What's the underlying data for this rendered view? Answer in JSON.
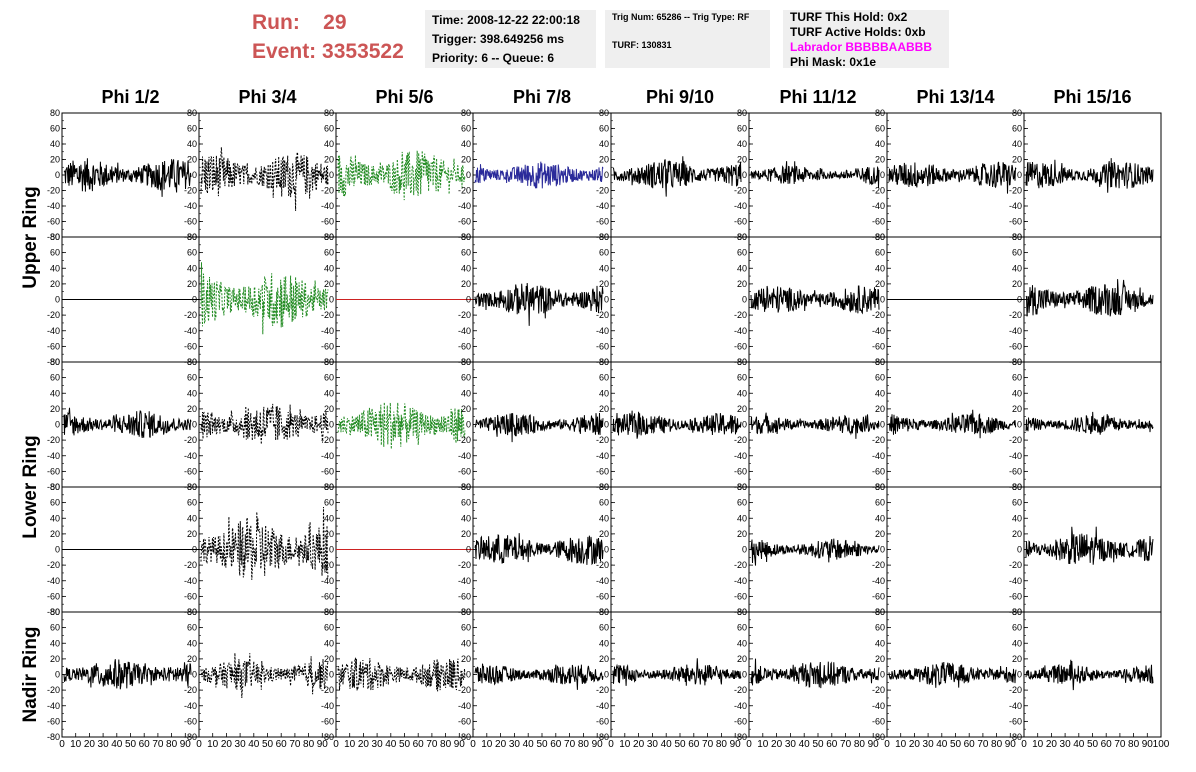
{
  "header": {
    "run_label": "Run:",
    "run_value": "29",
    "event_label": "Event:",
    "event_value": "3353522",
    "time": "Time: 2008-12-22 22:00:18",
    "trigger": "Trigger: 398.649256 ms",
    "priority": "Priority: 6 -- Queue: 6",
    "trig_num": "Trig Num: 65286 -- Trig Type: RF",
    "turf": "TURF: 130831",
    "turf_this_hold": "TURF This Hold: 0x2",
    "turf_active_holds": "TURF Active Holds: 0xb",
    "labrador": "Labrador BBBBBAABBB",
    "phi_mask": "Phi Mask: 0x1e"
  },
  "colors": {
    "run_text": "#cc5555",
    "labrador_text": "#ff00ff",
    "panel_bg": "#efefef",
    "trace_black": "#000000",
    "trace_green": "#228b22",
    "trace_blue": "#2b2b9a",
    "trace_red": "#cc2222"
  },
  "columns": [
    "Phi 1/2",
    "Phi 3/4",
    "Phi 5/6",
    "Phi 7/8",
    "Phi 9/10",
    "Phi 11/12",
    "Phi 13/14",
    "Phi 15/16"
  ],
  "row_groups": [
    "Upper Ring",
    "Lower Ring",
    "Nadir Ring"
  ],
  "chart_data": {
    "type": "line",
    "x_ticks": [
      "0",
      "10",
      "20",
      "30",
      "40",
      "50",
      "60",
      "70",
      "80",
      "90",
      "100"
    ],
    "y_ticks": [
      "80",
      "60",
      "40",
      "20",
      "0",
      "-20",
      "-40",
      "-60",
      "-80"
    ],
    "xlim": [
      0,
      100
    ],
    "ylim": [
      -80,
      80
    ],
    "grid": false,
    "panels": [
      [
        {
          "style": "black",
          "amp": 22
        },
        {
          "style": "black-dashed",
          "amp": 30
        },
        {
          "style": "green-dashed",
          "amp": 32
        },
        {
          "style": "blue",
          "amp": 18
        },
        {
          "style": "black",
          "amp": 20
        },
        {
          "style": "black",
          "amp": 12
        },
        {
          "style": "black",
          "amp": 18
        },
        {
          "style": "black",
          "amp": 18
        }
      ],
      [
        {
          "style": "flat-black",
          "amp": 0
        },
        {
          "style": "green-dashed",
          "amp": 38
        },
        {
          "style": "flat-red",
          "amp": 0
        },
        {
          "style": "black",
          "amp": 22
        },
        {
          "style": "flat-none",
          "amp": 0
        },
        {
          "style": "black",
          "amp": 18
        },
        {
          "style": "flat-black",
          "amp": 0
        },
        {
          "style": "black",
          "amp": 22
        }
      ],
      [
        {
          "style": "black",
          "amp": 18
        },
        {
          "style": "black-dashed",
          "amp": 28
        },
        {
          "style": "green-dashed",
          "amp": 32
        },
        {
          "style": "black",
          "amp": 15
        },
        {
          "style": "black",
          "amp": 15
        },
        {
          "style": "black",
          "amp": 12
        },
        {
          "style": "black",
          "amp": 14
        },
        {
          "style": "black",
          "amp": 13
        }
      ],
      [
        {
          "style": "flat-black",
          "amp": 0
        },
        {
          "style": "black-dashed",
          "amp": 42
        },
        {
          "style": "flat-red",
          "amp": 0
        },
        {
          "style": "black",
          "amp": 20
        },
        {
          "style": "flat-none",
          "amp": 0
        },
        {
          "style": "black",
          "amp": 14
        },
        {
          "style": "flat-none",
          "amp": 0
        },
        {
          "style": "black",
          "amp": 22
        }
      ],
      [
        {
          "style": "black",
          "amp": 20
        },
        {
          "style": "black-dashed",
          "amp": 20
        },
        {
          "style": "black-dashed",
          "amp": 22
        },
        {
          "style": "black",
          "amp": 14
        },
        {
          "style": "black",
          "amp": 14
        },
        {
          "style": "black",
          "amp": 18
        },
        {
          "style": "black",
          "amp": 16
        },
        {
          "style": "black",
          "amp": 13
        }
      ]
    ]
  }
}
